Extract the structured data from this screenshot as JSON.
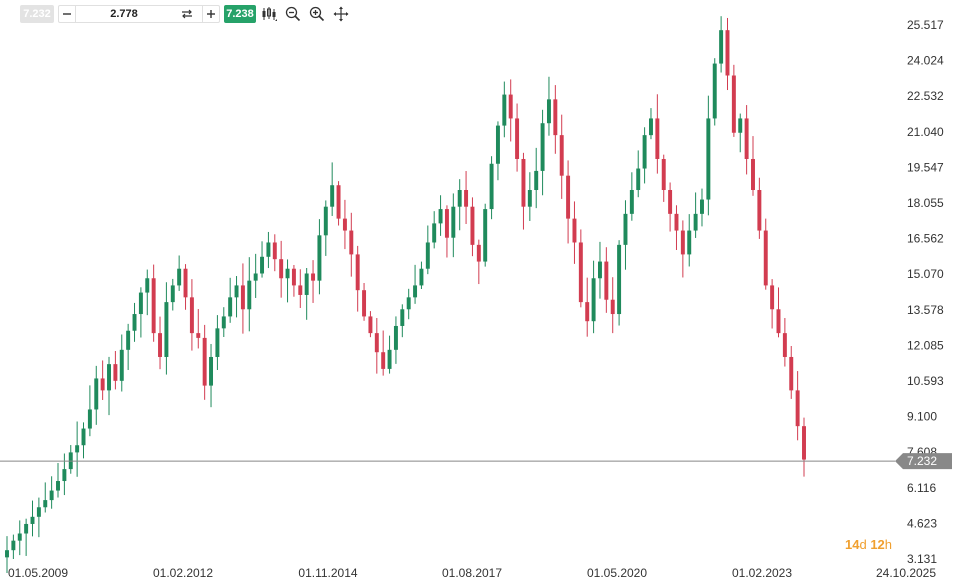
{
  "toolbar": {
    "bid_price": "7.232",
    "quantity": "2.778",
    "ask_price": "7.238"
  },
  "icons": {
    "minus": "minus-icon",
    "swap": "swap-icon",
    "plus": "plus-icon",
    "candles": "candlestick-type-icon",
    "zoom_out": "zoom-out-icon",
    "zoom_in": "zoom-in-icon",
    "pan": "pan-move-icon"
  },
  "countdown": {
    "days": "14",
    "days_unit": "d",
    "hours": "12",
    "hours_unit": "h"
  },
  "chart_data": {
    "type": "candlestick",
    "y_ticks": [
      "25.517",
      "24.024",
      "22.532",
      "21.040",
      "19.547",
      "18.055",
      "16.562",
      "15.070",
      "13.578",
      "12.085",
      "10.593",
      "9.100",
      "7.608",
      "6.116",
      "4.623",
      "3.131"
    ],
    "ylim": [
      3.131,
      25.517
    ],
    "x_ticks": [
      "01.05.2009",
      "01.02.2012",
      "01.11.2014",
      "01.08.2017",
      "01.05.2020",
      "01.02.2023",
      "24.10.2025"
    ],
    "current_price": "7.232",
    "current_price_value": 7.232,
    "colors": {
      "up": "#1f8a5c",
      "down": "#d23c50",
      "price_line": "#888888",
      "price_tag": "#888888"
    },
    "grid": false,
    "approx_close_series": [
      3.5,
      3.9,
      4.2,
      4.6,
      4.9,
      5.3,
      5.6,
      6.0,
      6.4,
      6.9,
      7.6,
      7.9,
      8.6,
      9.4,
      10.7,
      10.2,
      11.3,
      10.6,
      11.9,
      12.7,
      13.4,
      14.3,
      14.9,
      12.6,
      11.6,
      13.9,
      14.6,
      15.3,
      14.1,
      12.6,
      12.4,
      10.4,
      11.6,
      12.8,
      13.3,
      14.1,
      14.6,
      13.6,
      14.8,
      15.1,
      15.8,
      16.4,
      15.7,
      14.9,
      15.3,
      14.6,
      14.2,
      15.1,
      14.8,
      16.7,
      17.9,
      18.8,
      17.4,
      16.9,
      15.9,
      14.4,
      13.3,
      12.6,
      11.8,
      11.1,
      11.9,
      12.9,
      13.6,
      14.1,
      14.6,
      15.3,
      16.4,
      17.2,
      17.8,
      16.6,
      17.9,
      18.6,
      17.9,
      16.3,
      15.6,
      17.8,
      19.7,
      21.3,
      22.6,
      21.6,
      19.9,
      17.9,
      18.6,
      19.4,
      21.4,
      22.4,
      20.9,
      19.2,
      17.4,
      16.4,
      13.9,
      13.1,
      14.9,
      15.6,
      14.0,
      13.4,
      16.3,
      17.6,
      18.6,
      19.5,
      20.9,
      21.6,
      19.9,
      18.6,
      17.6,
      16.9,
      15.9,
      16.9,
      17.6,
      18.2,
      21.6,
      23.9,
      25.3,
      23.4,
      21.0,
      21.6,
      19.9,
      18.6,
      16.9,
      14.6,
      13.6,
      12.6,
      11.6,
      10.2,
      8.7,
      7.3
    ]
  }
}
